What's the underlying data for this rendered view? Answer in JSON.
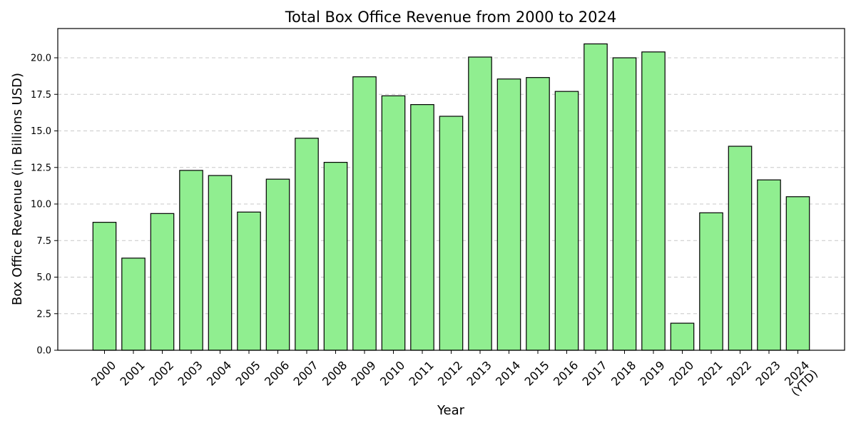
{
  "chart_data": {
    "type": "bar",
    "title": "Total Box Office Revenue from 2000 to 2024",
    "xlabel": "Year",
    "ylabel": "Box Office Revenue (in Billions USD)",
    "ylim": [
      0,
      22
    ],
    "yticks": [
      "0.0",
      "2.5",
      "5.0",
      "7.5",
      "10.0",
      "12.5",
      "15.0",
      "17.5",
      "20.0"
    ],
    "ytick_values": [
      0,
      2.5,
      5,
      7.5,
      10,
      12.5,
      15,
      17.5,
      20
    ],
    "grid": "y-dashed",
    "bar_color": "#90ee90",
    "edge_color": "#000000",
    "categories": [
      "2000",
      "2001",
      "2002",
      "2003",
      "2004",
      "2005",
      "2006",
      "2007",
      "2008",
      "2009",
      "2010",
      "2011",
      "2012",
      "2013",
      "2014",
      "2015",
      "2016",
      "2017",
      "2018",
      "2019",
      "2020",
      "2021",
      "2022",
      "2023",
      "2024\n(YTD)"
    ],
    "values": [
      8.75,
      6.3,
      9.35,
      12.3,
      11.95,
      9.45,
      11.7,
      14.5,
      12.85,
      18.7,
      17.4,
      16.8,
      16.0,
      20.05,
      18.55,
      18.65,
      17.7,
      20.95,
      20.0,
      20.4,
      1.85,
      9.4,
      13.95,
      11.65,
      10.5
    ]
  }
}
